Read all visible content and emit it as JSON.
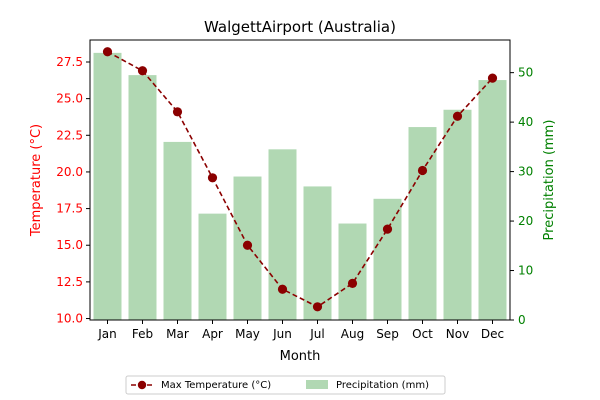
{
  "chart_data": {
    "type": "bar+line",
    "title": "WalgettAirport (Australia)",
    "xlabel": "Month",
    "ylabel_left": "Temperature (°C)",
    "ylabel_right": "Precipitation (mm)",
    "categories": [
      "Jan",
      "Feb",
      "Mar",
      "Apr",
      "May",
      "Jun",
      "Jul",
      "Aug",
      "Sep",
      "Oct",
      "Nov",
      "Dec"
    ],
    "series": [
      {
        "name": "Max Temperature (°C)",
        "kind": "line",
        "axis": "left",
        "color": "#8b0000",
        "values": [
          28.2,
          26.9,
          24.1,
          19.6,
          15.0,
          12.0,
          10.8,
          12.4,
          16.1,
          20.1,
          23.8,
          26.4
        ]
      },
      {
        "name": "Precipitation (mm)",
        "kind": "bar",
        "axis": "right",
        "color": "#b1d8b3",
        "values": [
          54,
          49.5,
          36,
          21.5,
          29,
          34.5,
          27,
          19.5,
          24.5,
          39,
          42.5,
          48.5
        ]
      }
    ],
    "ylim_left": [
      9.9,
      29.0
    ],
    "ylim_right": [
      0,
      56.6
    ],
    "yticks_left": [
      "10.0",
      "12.5",
      "15.0",
      "17.5",
      "20.0",
      "22.5",
      "25.0",
      "27.5"
    ],
    "yticks_right": [
      "0",
      "10",
      "20",
      "30",
      "40",
      "50"
    ],
    "grid": false,
    "legend_position": "bottom-center",
    "left_axis_color": "#ff0000",
    "right_axis_color": "#008000"
  }
}
